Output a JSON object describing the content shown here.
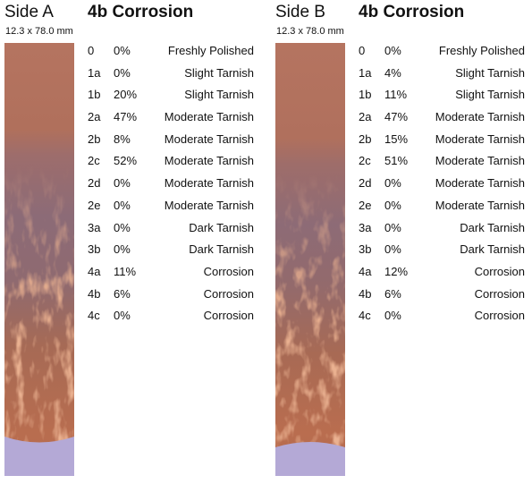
{
  "heading": "4b Corrosion",
  "colors": {
    "copper_polished": "#b8735e",
    "copper_tarnish": "#8a6a73",
    "corrosion": "#c06a45",
    "mount_lavender": "#b4a9d6"
  },
  "panels": [
    {
      "side_label": "Side A",
      "dimensions": "12.3 x 78.0 mm",
      "rows": [
        {
          "code": "0",
          "pct": "0%",
          "desc": "Freshly Polished"
        },
        {
          "code": "1a",
          "pct": "0%",
          "desc": "Slight Tarnish"
        },
        {
          "code": "1b",
          "pct": "20%",
          "desc": "Slight Tarnish"
        },
        {
          "code": "2a",
          "pct": "47%",
          "desc": "Moderate Tarnish"
        },
        {
          "code": "2b",
          "pct": "8%",
          "desc": "Moderate Tarnish"
        },
        {
          "code": "2c",
          "pct": "52%",
          "desc": "Moderate Tarnish"
        },
        {
          "code": "2d",
          "pct": "0%",
          "desc": "Moderate Tarnish"
        },
        {
          "code": "2e",
          "pct": "0%",
          "desc": "Moderate Tarnish"
        },
        {
          "code": "3a",
          "pct": "0%",
          "desc": "Dark Tarnish"
        },
        {
          "code": "3b",
          "pct": "0%",
          "desc": "Dark Tarnish"
        },
        {
          "code": "4a",
          "pct": "11%",
          "desc": "Corrosion"
        },
        {
          "code": "4b",
          "pct": "6%",
          "desc": "Corrosion"
        },
        {
          "code": "4c",
          "pct": "0%",
          "desc": "Corrosion"
        }
      ]
    },
    {
      "side_label": "Side B",
      "dimensions": "12.3 x 78.0 mm",
      "rows": [
        {
          "code": "0",
          "pct": "0%",
          "desc": "Freshly Polished"
        },
        {
          "code": "1a",
          "pct": "4%",
          "desc": "Slight Tarnish"
        },
        {
          "code": "1b",
          "pct": "11%",
          "desc": "Slight Tarnish"
        },
        {
          "code": "2a",
          "pct": "47%",
          "desc": "Moderate Tarnish"
        },
        {
          "code": "2b",
          "pct": "15%",
          "desc": "Moderate Tarnish"
        },
        {
          "code": "2c",
          "pct": "51%",
          "desc": "Moderate Tarnish"
        },
        {
          "code": "2d",
          "pct": "0%",
          "desc": "Moderate Tarnish"
        },
        {
          "code": "2e",
          "pct": "0%",
          "desc": "Moderate Tarnish"
        },
        {
          "code": "3a",
          "pct": "0%",
          "desc": "Dark Tarnish"
        },
        {
          "code": "3b",
          "pct": "0%",
          "desc": "Dark Tarnish"
        },
        {
          "code": "4a",
          "pct": "12%",
          "desc": "Corrosion"
        },
        {
          "code": "4b",
          "pct": "6%",
          "desc": "Corrosion"
        },
        {
          "code": "4c",
          "pct": "0%",
          "desc": "Corrosion"
        }
      ]
    }
  ]
}
